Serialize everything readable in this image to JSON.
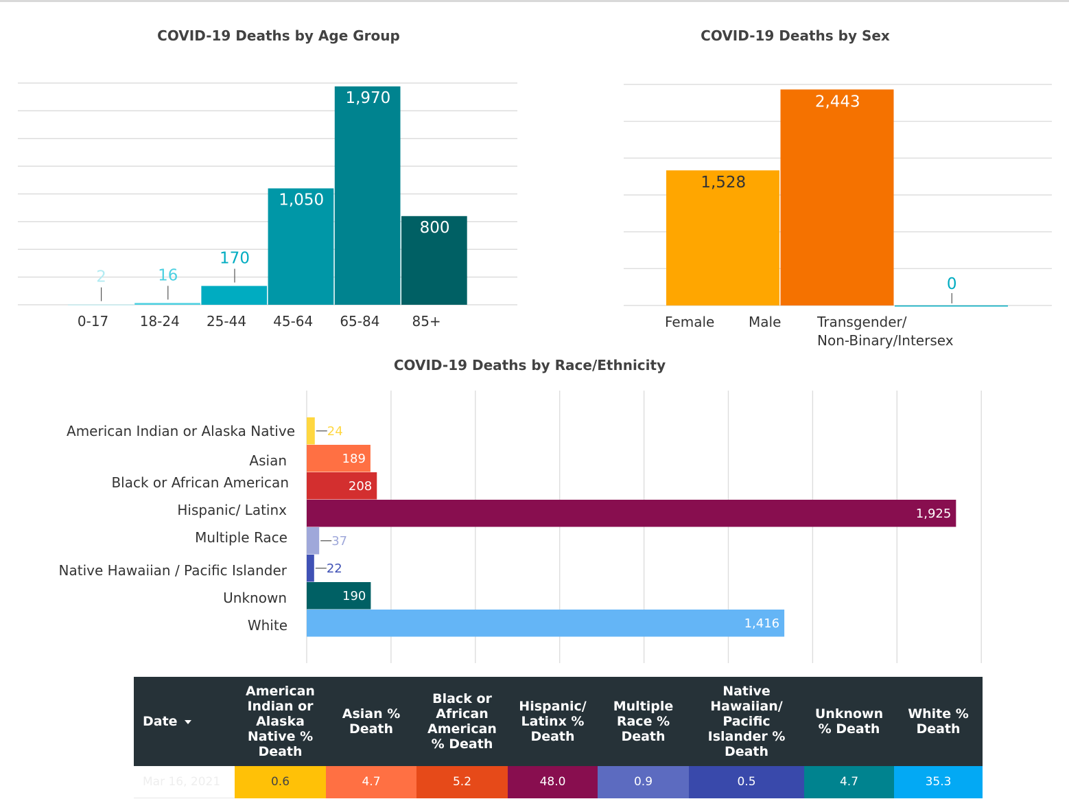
{
  "chart_data": [
    {
      "type": "bar",
      "title": "COVID-19 Deaths by Age Group",
      "categories": [
        "0-17",
        "18-24",
        "25-44",
        "45-64",
        "65-84",
        "85+"
      ],
      "values": [
        2,
        16,
        170,
        1050,
        1970,
        800
      ],
      "value_labels": [
        "2",
        "16",
        "170",
        "1,050",
        "1,970",
        "800"
      ],
      "colors": [
        "#b2ebf2",
        "#4dd0e1",
        "#00acc1",
        "#0097a7",
        "#00838f",
        "#006064"
      ],
      "ylim": [
        0,
        2000
      ],
      "grid": true
    },
    {
      "type": "bar",
      "title": "COVID-19 Deaths by Sex",
      "categories": [
        "Female",
        "Male",
        "Transgender/\nNon-Binary/Intersex"
      ],
      "values": [
        1528,
        2443,
        0
      ],
      "value_labels": [
        "1,528",
        "2,443",
        "0"
      ],
      "colors": [
        "#ffa600",
        "#f57200",
        "#00acc1"
      ],
      "ylim": [
        0,
        2500
      ],
      "grid": true
    },
    {
      "type": "bar",
      "orientation": "horizontal",
      "title": "COVID-19 Deaths by Race/Ethnicity",
      "categories": [
        "American Indian or Alaska Native",
        "Asian",
        "Black or African American",
        "Hispanic/ Latinx",
        "Multiple Race",
        "Native Hawaiian / Pacific Islander",
        "Unknown",
        "White"
      ],
      "values": [
        24,
        189,
        208,
        1925,
        37,
        22,
        190,
        1416
      ],
      "value_labels": [
        "24",
        "189",
        "208",
        "1,925",
        "37",
        "22",
        "190",
        "1,416"
      ],
      "colors": [
        "#ffd740",
        "#ff7043",
        "#d32f2f",
        "#880e4f",
        "#9fa8da",
        "#3f51b5",
        "#006064",
        "#64b5f6"
      ],
      "xlim": [
        0,
        2000
      ],
      "grid": true
    },
    {
      "type": "table",
      "columns": [
        "Date",
        "American Indian or Alaska Native % Death",
        "Asian % Death",
        "Black or African American % Death",
        "Hispanic/ Latinx % Death",
        "Multiple Race % Death",
        "Native Hawaiian/ Pacific Islander % Death",
        "Unknown % Death",
        "White % Death"
      ],
      "rows": [
        [
          "Mar 16, 2021",
          "0.6",
          "4.7",
          "5.2",
          "48.0",
          "0.9",
          "0.5",
          "4.7",
          "35.3"
        ]
      ],
      "cell_colors": [
        "#ffffff",
        "#ffc107",
        "#ff7043",
        "#e64a19",
        "#880e4f",
        "#5c6bc0",
        "#3949ab",
        "#00838f",
        "#03a9f4"
      ],
      "sort_indicator": "caret-down-icon"
    }
  ]
}
